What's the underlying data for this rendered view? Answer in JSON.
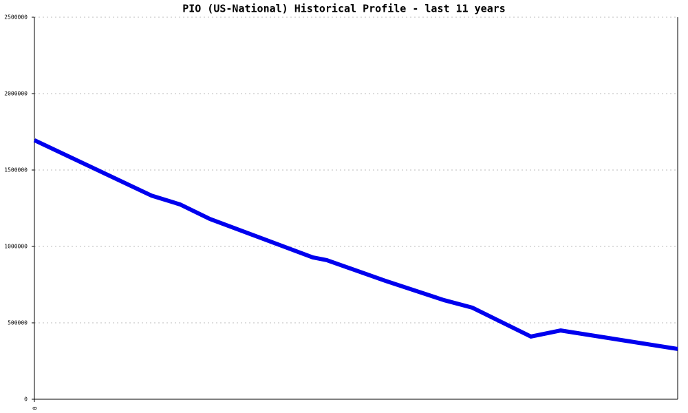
{
  "chart_data": {
    "type": "line",
    "title": "PIO (US-National) Historical Profile - last 11 years",
    "x": [
      0,
      2,
      2.49,
      3,
      4.76,
      5,
      6,
      7,
      7.49,
      8.49,
      9,
      11
    ],
    "series": [
      {
        "name": "PIO",
        "color": "#0000ee",
        "values": [
          1695000,
          1333000,
          1275000,
          1180000,
          928000,
          910000,
          775000,
          649000,
          599000,
          410000,
          450000,
          329000
        ]
      }
    ],
    "xlim": [
      0,
      11
    ],
    "xticks": [
      0
    ],
    "ylim": [
      0,
      2500000
    ],
    "yticks": [
      0,
      500000,
      1000000,
      1500000,
      2000000,
      2500000
    ],
    "grid": true
  }
}
